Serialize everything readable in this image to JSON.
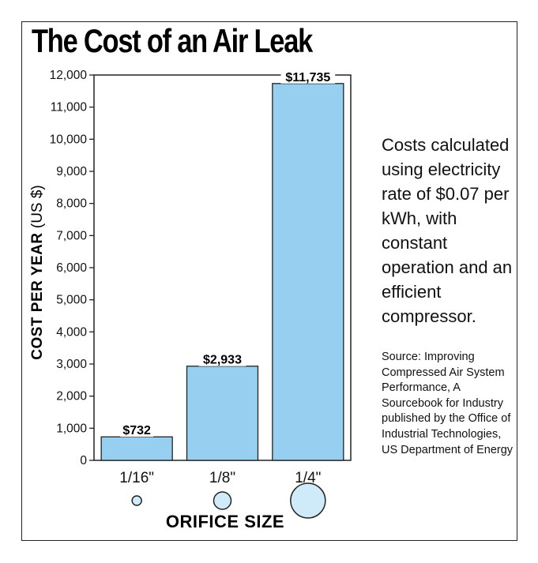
{
  "chart_data": {
    "type": "bar",
    "title": "The Cost of an Air Leak",
    "ylabel_bold": "COST PER YEAR",
    "ylabel_unit": "(US $)",
    "xlabel": "ORIFICE SIZE",
    "categories": [
      "1/16\"",
      "1/8\"",
      "1/4\""
    ],
    "values": [
      732,
      2933,
      11735
    ],
    "data_labels": [
      "$732",
      "$2,933",
      "$11,735"
    ],
    "ylim": [
      0,
      12000
    ],
    "yticks": [
      0,
      1000,
      2000,
      3000,
      4000,
      5000,
      6000,
      7000,
      8000,
      9000,
      10000,
      11000,
      12000
    ],
    "ytick_labels": [
      "0",
      "1,000",
      "2,000",
      "3,000",
      "4,000",
      "5,000",
      "6,000",
      "7,000",
      "8,000",
      "9,000",
      "10,000",
      "11,000",
      "12,000"
    ],
    "grid": false,
    "bar_color": "#96cff0",
    "orifice_icon_color": "#cfeaf9"
  },
  "note": "Costs calculated using electricity rate of $0.07 per kWh, with constant operation and an efficient compressor.",
  "source": "Source: Improving Compressed Air System Performance, A Sourcebook for Industry published by the Office of Industrial Technologies, US Department of Energy"
}
